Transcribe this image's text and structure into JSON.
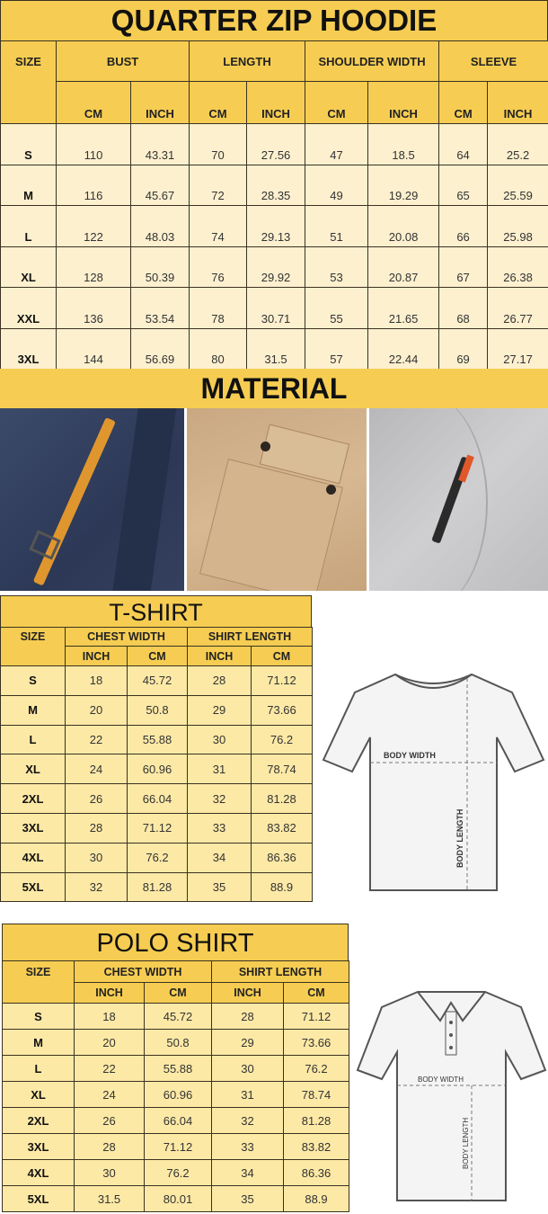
{
  "hoodie": {
    "title": "QUARTER ZIP HOODIE",
    "size_label": "SIZE",
    "groups": [
      "BUST",
      "LENGTH",
      "SHOULDER WIDTH",
      "SLEEVE"
    ],
    "units": [
      "CM",
      "INCH",
      "CM",
      "INCH",
      "CM",
      "INCH",
      "CM",
      "INCH"
    ],
    "rows": [
      [
        "S",
        "110",
        "43.31",
        "70",
        "27.56",
        "47",
        "18.5",
        "64",
        "25.2"
      ],
      [
        "M",
        "116",
        "45.67",
        "72",
        "28.35",
        "49",
        "19.29",
        "65",
        "25.59"
      ],
      [
        "L",
        "122",
        "48.03",
        "74",
        "29.13",
        "51",
        "20.08",
        "66",
        "25.98"
      ],
      [
        "XL",
        "128",
        "50.39",
        "76",
        "29.92",
        "53",
        "20.87",
        "67",
        "26.38"
      ],
      [
        "XXL",
        "136",
        "53.54",
        "78",
        "30.71",
        "55",
        "21.65",
        "68",
        "26.77"
      ],
      [
        "3XL",
        "144",
        "56.69",
        "80",
        "31.5",
        "57",
        "22.44",
        "69",
        "27.17"
      ]
    ]
  },
  "material": {
    "title": "MATERIAL"
  },
  "tshirt": {
    "title": "T-SHIRT",
    "size_label": "SIZE",
    "groups": [
      "CHEST WIDTH",
      "SHIRT LENGTH"
    ],
    "units": [
      "INCH",
      "CM",
      "INCH",
      "CM"
    ],
    "rows": [
      [
        "S",
        "18",
        "45.72",
        "28",
        "71.12"
      ],
      [
        "M",
        "20",
        "50.8",
        "29",
        "73.66"
      ],
      [
        "L",
        "22",
        "55.88",
        "30",
        "76.2"
      ],
      [
        "XL",
        "24",
        "60.96",
        "31",
        "78.74"
      ],
      [
        "2XL",
        "26",
        "66.04",
        "32",
        "81.28"
      ],
      [
        "3XL",
        "28",
        "71.12",
        "33",
        "83.82"
      ],
      [
        "4XL",
        "30",
        "76.2",
        "34",
        "86.36"
      ],
      [
        "5XL",
        "32",
        "81.28",
        "35",
        "88.9"
      ]
    ],
    "diagram": {
      "width_label": "BODY WIDTH",
      "length_label": "BODY LENGTH"
    }
  },
  "polo": {
    "title": "POLO SHIRT",
    "size_label": "SIZE",
    "groups": [
      "CHEST WIDTH",
      "SHIRT LENGTH"
    ],
    "units": [
      "INCH",
      "CM",
      "INCH",
      "CM"
    ],
    "rows": [
      [
        "S",
        "18",
        "45.72",
        "28",
        "71.12"
      ],
      [
        "M",
        "20",
        "50.8",
        "29",
        "73.66"
      ],
      [
        "L",
        "22",
        "55.88",
        "30",
        "76.2"
      ],
      [
        "XL",
        "24",
        "60.96",
        "31",
        "78.74"
      ],
      [
        "2XL",
        "26",
        "66.04",
        "32",
        "81.28"
      ],
      [
        "3XL",
        "28",
        "71.12",
        "33",
        "83.82"
      ],
      [
        "4XL",
        "30",
        "76.2",
        "34",
        "86.36"
      ],
      [
        "5XL",
        "31.5",
        "80.01",
        "35",
        "88.9"
      ]
    ],
    "diagram": {
      "width_label": "BODY WIDTH",
      "length_label": "BODY LENGTH"
    }
  },
  "colors": {
    "header": "#f6cd52",
    "cell_light": "#fdf0cf",
    "cell_yellow": "#fde9a6",
    "border": "#3a3222"
  }
}
